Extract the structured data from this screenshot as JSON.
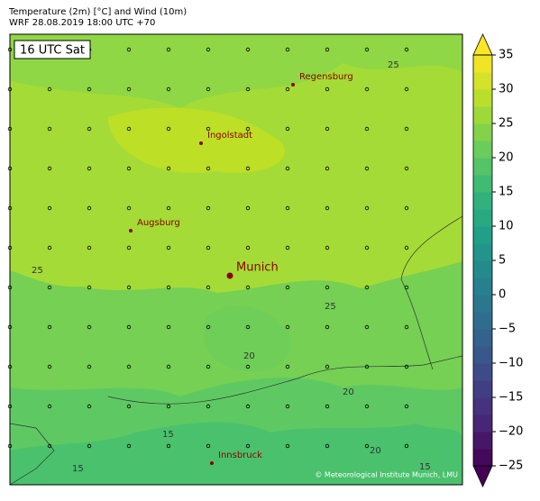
{
  "header": {
    "title": "Temperature (2m) [°C] and Wind (10m)",
    "subtitle": "WRF 28.08.2019 18:00 UTC +70"
  },
  "map": {
    "time_label": "16 UTC Sat",
    "cities": [
      {
        "name": "Regensburg"
      },
      {
        "name": "Ingolstadt"
      },
      {
        "name": "Augsburg"
      },
      {
        "name": "Munich"
      },
      {
        "name": "Innsbruck"
      }
    ],
    "contour_labels": [
      "25",
      "25",
      "25",
      "20",
      "20",
      "20",
      "15",
      "15",
      "15"
    ],
    "credit": "© Meteorological Institute Munich, LMU"
  },
  "colorbar": {
    "lim": [
      -25,
      35
    ],
    "ticks": [
      {
        "value": -25,
        "label": "−25"
      },
      {
        "value": -20,
        "label": "−20"
      },
      {
        "value": -15,
        "label": "−15"
      },
      {
        "value": -10,
        "label": "−10"
      },
      {
        "value": -5,
        "label": "−5"
      },
      0,
      5,
      10,
      15,
      20,
      25,
      30,
      35
    ]
  }
}
